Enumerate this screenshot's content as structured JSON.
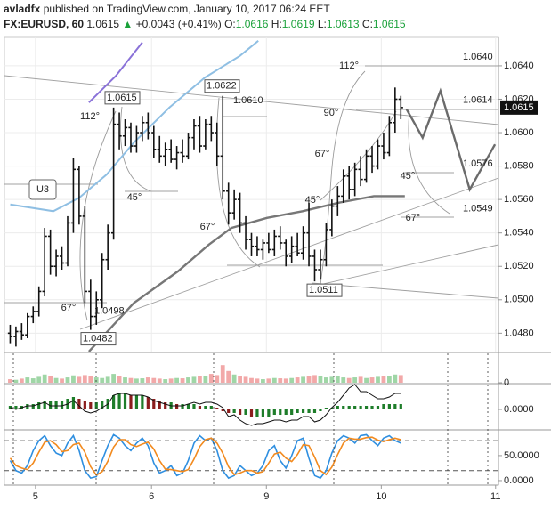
{
  "chart_data": [
    {
      "type": "ohlc",
      "header": {
        "author": "avladfx",
        "published": "published on TradingView.com, January 10, 2017 06:24 EET",
        "symbol": "FX:EURUSD, 60",
        "last": "1.0615",
        "change": "+0.0043 (+0.41%)",
        "open_label": "O:",
        "open": "1.0616",
        "high_label": "H:",
        "high": "1.0619",
        "low_label": "L:",
        "low": "1.0613",
        "close_label": "C:",
        "close": "1.0615"
      },
      "color": "#111111",
      "xlim": [
        -1,
        85
      ],
      "ylim": [
        1.0469,
        1.0657
      ],
      "yticks": [
        {
          "value": 1.048,
          "label": "1.0480"
        },
        {
          "value": 1.05,
          "label": "1.0500"
        },
        {
          "value": 1.052,
          "label": "1.0520"
        },
        {
          "value": 1.054,
          "label": "1.0540"
        },
        {
          "value": 1.056,
          "label": "1.0560"
        },
        {
          "value": 1.058,
          "label": "1.0580"
        },
        {
          "value": 1.06,
          "label": "1.0600"
        },
        {
          "value": 1.062,
          "label": "1.0620"
        },
        {
          "value": 1.064,
          "label": "1.0640"
        }
      ],
      "grid": true,
      "last_price": {
        "value": 1.0615,
        "label": "1.0615"
      },
      "ohlc": [
        [
          1.048,
          1.0485,
          1.0474,
          1.0478
        ],
        [
          1.0478,
          1.0484,
          1.0472,
          1.0481
        ],
        [
          1.0481,
          1.0486,
          1.0476,
          1.0479
        ],
        [
          1.0479,
          1.0492,
          1.0477,
          1.049
        ],
        [
          1.049,
          1.0496,
          1.0486,
          1.0493
        ],
        [
          1.0493,
          1.0508,
          1.049,
          1.0505
        ],
        [
          1.0505,
          1.0543,
          1.0502,
          1.0538
        ],
        [
          1.0538,
          1.0542,
          1.0515,
          1.052
        ],
        [
          1.052,
          1.053,
          1.0514,
          1.0526
        ],
        [
          1.0526,
          1.0532,
          1.0518,
          1.0522
        ],
        [
          1.0522,
          1.055,
          1.052,
          1.0546
        ],
        [
          1.0546,
          1.0585,
          1.054,
          1.0578
        ],
        [
          1.0578,
          1.058,
          1.0545,
          1.055
        ],
        [
          1.055,
          1.0556,
          1.0498,
          1.0505
        ],
        [
          1.0505,
          1.0512,
          1.0482,
          1.049
        ],
        [
          1.049,
          1.0505,
          1.0485,
          1.05
        ],
        [
          1.05,
          1.0528,
          1.0495,
          1.0524
        ],
        [
          1.0524,
          1.0545,
          1.0518,
          1.054
        ],
        [
          1.054,
          1.0615,
          1.0536,
          1.0605
        ],
        [
          1.0605,
          1.0612,
          1.059,
          1.0598
        ],
        [
          1.0598,
          1.0608,
          1.0592,
          1.0603
        ],
        [
          1.0603,
          1.0606,
          1.0588,
          1.0592
        ],
        [
          1.0592,
          1.0604,
          1.0588,
          1.06
        ],
        [
          1.06,
          1.061,
          1.0595,
          1.0606
        ],
        [
          1.0606,
          1.0612,
          1.0596,
          1.06
        ],
        [
          1.06,
          1.0604,
          1.0585,
          1.059
        ],
        [
          1.059,
          1.0598,
          1.0582,
          1.0586
        ],
        [
          1.0586,
          1.0594,
          1.058,
          1.059
        ],
        [
          1.059,
          1.0596,
          1.0582,
          1.0584
        ],
        [
          1.0584,
          1.0592,
          1.0578,
          1.0588
        ],
        [
          1.0588,
          1.0596,
          1.0582,
          1.0586
        ],
        [
          1.0586,
          1.06,
          1.0584,
          1.0597
        ],
        [
          1.0597,
          1.0608,
          1.059,
          1.0604
        ],
        [
          1.0604,
          1.061,
          1.0588,
          1.0592
        ],
        [
          1.0592,
          1.0608,
          1.059,
          1.0605
        ],
        [
          1.0605,
          1.061,
          1.0595,
          1.06
        ],
        [
          1.06,
          1.0606,
          1.058,
          1.0586
        ],
        [
          1.0586,
          1.0622,
          1.056,
          1.0565
        ],
        [
          1.0565,
          1.057,
          1.0545,
          1.0552
        ],
        [
          1.0552,
          1.0566,
          1.0548,
          1.056
        ],
        [
          1.056,
          1.0564,
          1.054,
          1.0546
        ],
        [
          1.0546,
          1.055,
          1.053,
          1.0536
        ],
        [
          1.0536,
          1.054,
          1.0526,
          1.0532
        ],
        [
          1.0532,
          1.0538,
          1.0526,
          1.053
        ],
        [
          1.053,
          1.0536,
          1.0524,
          1.0534
        ],
        [
          1.0534,
          1.054,
          1.0528,
          1.053
        ],
        [
          1.053,
          1.0542,
          1.0526,
          1.0538
        ],
        [
          1.0538,
          1.0544,
          1.053,
          1.0534
        ],
        [
          1.0534,
          1.0536,
          1.052,
          1.0526
        ],
        [
          1.0526,
          1.0538,
          1.0522,
          1.0532
        ],
        [
          1.0532,
          1.054,
          1.0526,
          1.0528
        ],
        [
          1.0528,
          1.0544,
          1.0524,
          1.054
        ],
        [
          1.054,
          1.0558,
          1.052,
          1.0526
        ],
        [
          1.0526,
          1.053,
          1.0511,
          1.0518
        ],
        [
          1.0518,
          1.053,
          1.0512,
          1.0524
        ],
        [
          1.0524,
          1.0546,
          1.052,
          1.0542
        ],
        [
          1.0542,
          1.056,
          1.0538,
          1.0556
        ],
        [
          1.0556,
          1.0568,
          1.055,
          1.0562
        ],
        [
          1.0562,
          1.0578,
          1.0558,
          1.0574
        ],
        [
          1.0574,
          1.058,
          1.056,
          1.0566
        ],
        [
          1.0566,
          1.0582,
          1.0562,
          1.0578
        ],
        [
          1.0578,
          1.0586,
          1.0568,
          1.0572
        ],
        [
          1.0572,
          1.059,
          1.057,
          1.0586
        ],
        [
          1.0586,
          1.0592,
          1.0576,
          1.058
        ],
        [
          1.058,
          1.0596,
          1.0578,
          1.0592
        ],
        [
          1.0592,
          1.06,
          1.0584,
          1.0588
        ],
        [
          1.0588,
          1.061,
          1.0586,
          1.0606
        ],
        [
          1.0606,
          1.0627,
          1.06,
          1.062
        ],
        [
          1.062,
          1.0622,
          1.0608,
          1.0615
        ]
      ],
      "overlays": [
        {
          "color": "#8a72d8",
          "x": [
            13.7,
            18.4,
            23
          ],
          "values": [
            1.0618,
            1.0634,
            1.0654
          ]
        },
        {
          "color": "#8fbfe3",
          "x": [
            0,
            7.5,
            12,
            16.8,
            21.5,
            27.7,
            33.9,
            40,
            43.2
          ],
          "values": [
            1.0557,
            1.0553,
            1.0561,
            1.0575,
            1.0594,
            1.0615,
            1.0633,
            1.0646,
            1.0655
          ]
        },
        {
          "color": "#777777",
          "x": [
            13.7,
            21.5,
            29.2,
            34.6,
            38.5,
            44.7,
            50.9,
            57.1,
            63.3,
            68.7
          ],
          "values": [
            1.0469,
            1.0498,
            1.0517,
            1.0533,
            1.0543,
            1.0549,
            1.0553,
            1.0558,
            1.0562,
            1.0562
          ]
        }
      ],
      "projection": {
        "color": "#6b6b6b",
        "x": [
          69,
          71.8,
          74.9,
          80,
          84.4
        ],
        "values": [
          1.0614,
          1.0597,
          1.0625,
          1.0566,
          1.0593
        ]
      },
      "price_labels": [
        {
          "value": 1.064,
          "label": "1.0640"
        },
        {
          "value": 1.0614,
          "label": "1.0614"
        },
        {
          "value": 1.0576,
          "label": "1.0576"
        },
        {
          "value": 1.0549,
          "label": "1.0549"
        },
        {
          "value": 1.061,
          "label": "1.0610"
        },
        {
          "value": 1.0615,
          "label": "1.0615",
          "boxed": true
        },
        {
          "value": 1.0622,
          "label": "1.0622",
          "boxed": true
        },
        {
          "value": 1.0498,
          "label": "1.0498"
        },
        {
          "value": 1.0482,
          "label": "1.0482",
          "boxed": true
        },
        {
          "value": 1.0511,
          "label": "1.0511",
          "boxed": true
        }
      ],
      "angle_labels": [
        "112°",
        "112°",
        "90°",
        "67°",
        "67°",
        "67°",
        "67°",
        "45°",
        "45°",
        "45°"
      ],
      "wave_label": "U3"
    },
    {
      "type": "volume",
      "xlim": [
        -1,
        85
      ],
      "ylim": [
        0,
        100
      ],
      "yticks": [
        0
      ],
      "up_color": "#9fd6a6",
      "down_color": "#f2a8a8",
      "values": [
        12,
        10,
        14,
        18,
        15,
        20,
        28,
        22,
        16,
        14,
        18,
        25,
        20,
        26,
        24,
        18,
        16,
        20,
        30,
        22,
        18,
        16,
        14,
        15,
        18,
        16,
        14,
        12,
        14,
        16,
        15,
        18,
        20,
        24,
        22,
        30,
        26,
        60,
        40,
        28,
        24,
        20,
        16,
        14,
        12,
        14,
        16,
        15,
        14,
        16,
        18,
        20,
        24,
        26,
        22,
        18,
        20,
        22,
        18,
        16,
        18,
        20,
        16,
        18,
        20,
        22,
        24,
        28,
        26
      ]
    },
    {
      "type": "macd",
      "xlim": [
        -1,
        85
      ],
      "ylim": [
        -0.0011,
        0.0014
      ],
      "yticks": [
        {
          "value": 0,
          "label": "0.0000"
        }
      ],
      "up_color": "#1e7d2a",
      "down_color": "#8b1d1d",
      "line_color": "#111111",
      "values": [
        0.0002,
        0.0002,
        0.0002,
        0.0003,
        0.0003,
        0.0004,
        0.0005,
        0.0005,
        0.0005,
        0.0005,
        0.0006,
        0.0007,
        0.0006,
        0.0005,
        0.0004,
        0.0004,
        0.0005,
        0.0006,
        0.0008,
        0.0009,
        0.0009,
        0.0008,
        0.0008,
        0.0008,
        0.0007,
        0.0006,
        0.0005,
        0.0004,
        0.0004,
        0.0003,
        0.0003,
        0.0003,
        0.0003,
        0.0002,
        0.0002,
        0.0002,
        0.0001,
        -0.0001,
        -0.0002,
        -0.0002,
        -0.0003,
        -0.0003,
        -0.0004,
        -0.0004,
        -0.0004,
        -0.0004,
        -0.0003,
        -0.0003,
        -0.0003,
        -0.0003,
        -0.0002,
        -0.0002,
        -0.0002,
        -0.0002,
        -0.0001,
        0.0001,
        0.0001,
        0.0002,
        0.0002,
        0.0002,
        0.0002,
        0.0002,
        0.0002,
        0.0002,
        0.0002,
        0.0003,
        0.0003,
        0.0003,
        0.0003
      ],
      "line": [
        0.0001,
        0,
        0.0001,
        0.0002,
        0.0002,
        0.0003,
        0.0004,
        0.0002,
        0.0002,
        0.0002,
        0.0003,
        0.0005,
        0.0002,
        -0.0001,
        -0.0002,
        -0.0001,
        0.0001,
        0.0003,
        0.0008,
        0.0009,
        0.0009,
        0.0008,
        0.0008,
        0.0008,
        0.0007,
        0.0005,
        0.0004,
        0.0003,
        0.0002,
        0.0002,
        0.0002,
        0.0003,
        0.0004,
        0.0003,
        0.0004,
        0.0004,
        0.0003,
        0.0001,
        -0.0004,
        -0.0003,
        -0.0006,
        -0.0008,
        -0.0009,
        -0.0008,
        -0.0008,
        -0.0007,
        -0.0006,
        -0.0006,
        -0.0007,
        -0.0006,
        -0.0006,
        -0.0004,
        -0.0004,
        -0.0007,
        -0.0006,
        -0.0003,
        0.0001,
        0.0004,
        0.0008,
        0.0012,
        0.0014,
        0.001,
        0.001,
        0.0008,
        0.0006,
        0.0006,
        0.0007,
        0.0009,
        0.0009
      ]
    },
    {
      "type": "stoch",
      "xlim": [
        -1,
        85
      ],
      "ylim": [
        -9,
        98
      ],
      "yticks": [
        {
          "value": 50,
          "label": "50.0000"
        },
        {
          "value": 0,
          "label": "0.0000"
        }
      ],
      "bands": [
        80,
        20
      ],
      "xticks": [
        {
          "value": 4.4,
          "label": "5"
        },
        {
          "value": 24.6,
          "label": "6"
        },
        {
          "value": 44.6,
          "label": "9"
        },
        {
          "value": 64.6,
          "label": "10"
        },
        {
          "value": 84.5,
          "label": "11"
        }
      ],
      "series": [
        {
          "color": "#2f8fe0",
          "values": [
            40,
            20,
            15,
            30,
            60,
            80,
            90,
            70,
            55,
            50,
            75,
            90,
            60,
            20,
            5,
            8,
            40,
            70,
            92,
            85,
            70,
            60,
            75,
            85,
            70,
            35,
            15,
            20,
            30,
            10,
            15,
            40,
            75,
            90,
            80,
            85,
            60,
            20,
            5,
            10,
            30,
            20,
            10,
            15,
            30,
            60,
            70,
            40,
            25,
            50,
            80,
            85,
            45,
            10,
            5,
            20,
            55,
            80,
            90,
            85,
            75,
            90,
            92,
            80,
            70,
            85,
            90,
            80,
            75
          ]
        },
        {
          "color": "#f28a1e",
          "values": [
            45,
            30,
            25,
            22,
            35,
            57,
            77,
            80,
            72,
            58,
            60,
            72,
            75,
            57,
            28,
            11,
            18,
            39,
            67,
            82,
            82,
            72,
            68,
            73,
            77,
            63,
            40,
            23,
            22,
            20,
            18,
            22,
            43,
            68,
            82,
            85,
            75,
            55,
            28,
            12,
            15,
            20,
            20,
            15,
            18,
            35,
            53,
            57,
            45,
            38,
            52,
            72,
            70,
            47,
            20,
            12,
            27,
            52,
            75,
            85,
            83,
            83,
            86,
            87,
            81,
            78,
            82,
            85,
            82
          ]
        }
      ]
    }
  ]
}
